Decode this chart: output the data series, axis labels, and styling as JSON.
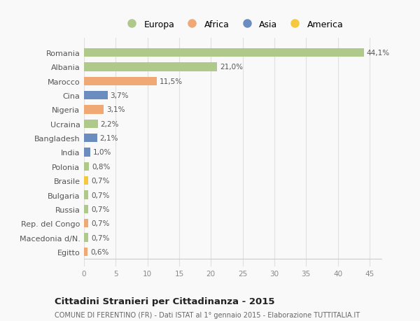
{
  "countries": [
    "Romania",
    "Albania",
    "Marocco",
    "Cina",
    "Nigeria",
    "Ucraina",
    "Bangladesh",
    "India",
    "Polonia",
    "Brasile",
    "Bulgaria",
    "Russia",
    "Rep. del Congo",
    "Macedonia d/N.",
    "Egitto"
  ],
  "values": [
    44.1,
    21.0,
    11.5,
    3.7,
    3.1,
    2.2,
    2.1,
    1.0,
    0.8,
    0.7,
    0.7,
    0.7,
    0.7,
    0.7,
    0.6
  ],
  "labels": [
    "44,1%",
    "21,0%",
    "11,5%",
    "3,7%",
    "3,1%",
    "2,2%",
    "2,1%",
    "1,0%",
    "0,8%",
    "0,7%",
    "0,7%",
    "0,7%",
    "0,7%",
    "0,7%",
    "0,6%"
  ],
  "continents": [
    "Europa",
    "Europa",
    "Africa",
    "Asia",
    "Africa",
    "Europa",
    "Asia",
    "Asia",
    "Europa",
    "America",
    "Europa",
    "Europa",
    "Africa",
    "Europa",
    "Africa"
  ],
  "continent_colors": {
    "Europa": "#aec98a",
    "Africa": "#f0a875",
    "Asia": "#6b8cbf",
    "America": "#f5c842"
  },
  "legend_items": [
    "Europa",
    "Africa",
    "Asia",
    "America"
  ],
  "legend_colors": [
    "#aec98a",
    "#f0a875",
    "#6b8cbf",
    "#f5c842"
  ],
  "title": "Cittadini Stranieri per Cittadinanza - 2015",
  "subtitle": "COMUNE DI FERENTINO (FR) - Dati ISTAT al 1° gennaio 2015 - Elaborazione TUTTITALIA.IT",
  "xlim": [
    0,
    47
  ],
  "xticks": [
    0,
    5,
    10,
    15,
    20,
    25,
    30,
    35,
    40,
    45
  ],
  "bg_color": "#f9f9f9",
  "grid_color": "#e0e0e0",
  "bar_height": 0.6
}
